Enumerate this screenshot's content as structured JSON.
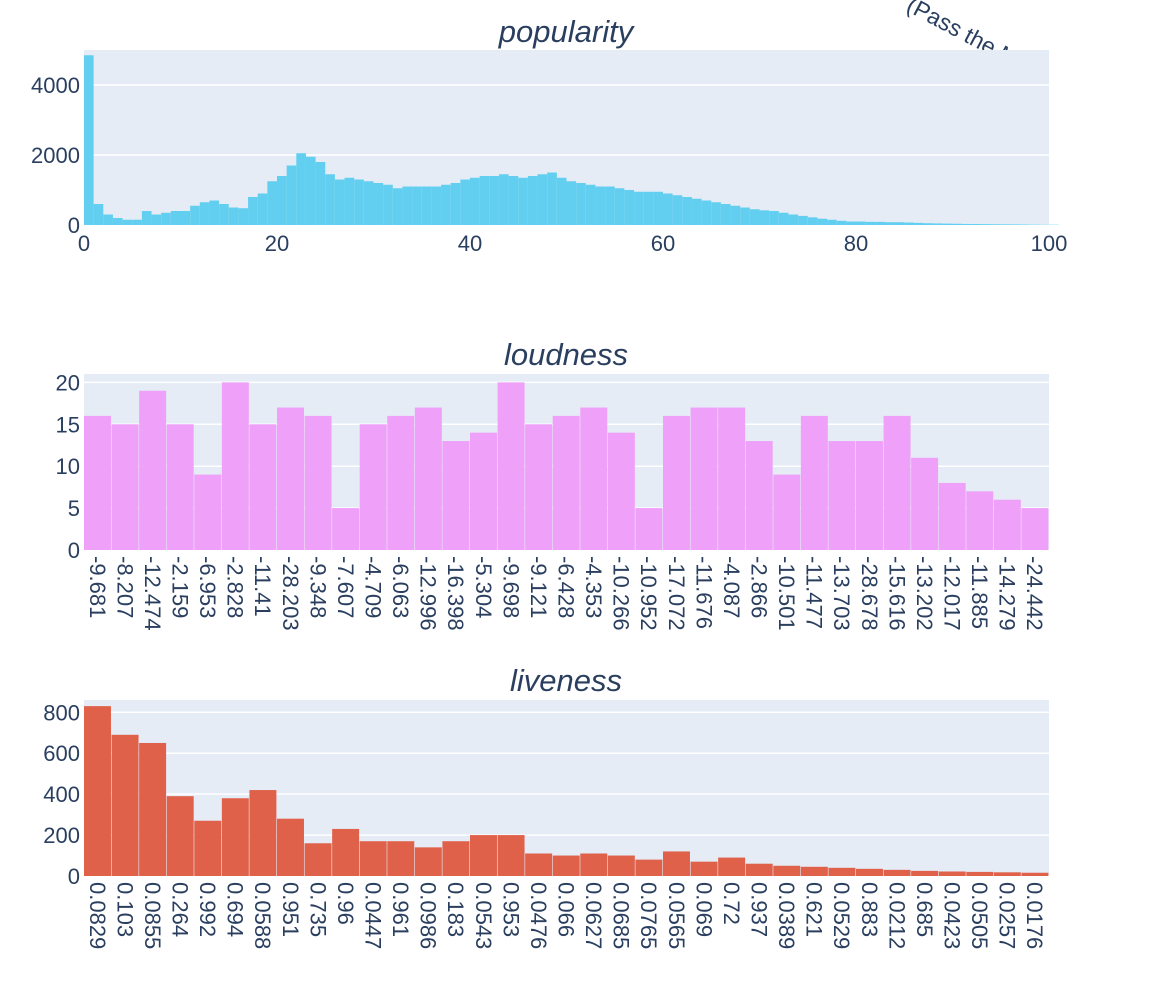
{
  "top_label": "(Pass the MIC)",
  "colors": {
    "popularity": "#63cff0",
    "loudness": "#efa0f9",
    "liveness": "#e0614a",
    "plot_bg": "#e5ecf6",
    "text": "#2a3f5f"
  },
  "chart_data": [
    {
      "type": "bar",
      "title": "popularity",
      "xlabel": "",
      "ylabel": "",
      "xlim": [
        0,
        100
      ],
      "ylim": [
        0,
        5000
      ],
      "xticks": [
        "0",
        "20",
        "40",
        "60",
        "80",
        "100"
      ],
      "yticks": [
        "0",
        "2000",
        "4000"
      ],
      "bin_width": 1,
      "values": [
        4850,
        600,
        300,
        200,
        150,
        150,
        400,
        300,
        350,
        400,
        400,
        550,
        650,
        700,
        600,
        500,
        480,
        800,
        900,
        1250,
        1400,
        1700,
        2050,
        1950,
        1800,
        1450,
        1300,
        1350,
        1300,
        1250,
        1200,
        1150,
        1050,
        1100,
        1100,
        1100,
        1100,
        1150,
        1200,
        1300,
        1350,
        1400,
        1400,
        1450,
        1400,
        1350,
        1400,
        1450,
        1500,
        1350,
        1250,
        1200,
        1150,
        1100,
        1100,
        1050,
        1000,
        950,
        950,
        950,
        900,
        850,
        800,
        750,
        700,
        650,
        600,
        550,
        500,
        450,
        420,
        400,
        350,
        300,
        260,
        220,
        180,
        150,
        120,
        100,
        100,
        90,
        90,
        80,
        80,
        70,
        60,
        50,
        45,
        40,
        35,
        30,
        28,
        25,
        22,
        20,
        18,
        15,
        12,
        10,
        8
      ]
    },
    {
      "type": "bar",
      "title": "loudness",
      "xlabel": "",
      "ylabel": "",
      "ylim": [
        0,
        21
      ],
      "yticks": [
        "0",
        "5",
        "10",
        "15",
        "20"
      ],
      "categories": [
        "-9.681",
        "-8.207",
        "-12.474",
        "-2.159",
        "-6.953",
        "-2.828",
        "-11.41",
        "-28.203",
        "-9.348",
        "-7.607",
        "-4.709",
        "-6.063",
        "-12.996",
        "-16.398",
        "-5.304",
        "-9.698",
        "-9.121",
        "-6.428",
        "-4.353",
        "-10.266",
        "-10.952",
        "-17.072",
        "-11.676",
        "-4.087",
        "-2.866",
        "-10.501",
        "-11.477",
        "-13.703",
        "-28.678",
        "-15.616",
        "-13.202",
        "-12.017",
        "-11.885",
        "-14.279",
        "-24.442"
      ],
      "values": [
        16,
        15,
        19,
        15,
        9,
        20,
        15,
        17,
        16,
        5,
        15,
        16,
        17,
        13,
        14,
        20,
        15,
        16,
        17,
        14,
        5,
        16,
        17,
        17,
        13,
        9,
        16,
        13,
        13,
        16,
        11,
        8,
        7,
        6,
        5
      ]
    },
    {
      "type": "bar",
      "title": "liveness",
      "xlabel": "",
      "ylabel": "",
      "ylim": [
        0,
        860
      ],
      "yticks": [
        "0",
        "200",
        "400",
        "600",
        "800"
      ],
      "categories": [
        "0.0829",
        "0.103",
        "0.0855",
        "0.264",
        "0.992",
        "0.694",
        "0.0588",
        "0.951",
        "0.735",
        "0.96",
        "0.0447",
        "0.961",
        "0.0986",
        "0.183",
        "0.0543",
        "0.953",
        "0.0476",
        "0.066",
        "0.0627",
        "0.0685",
        "0.0765",
        "0.0565",
        "0.069",
        "0.72",
        "0.937",
        "0.0389",
        "0.621",
        "0.0529",
        "0.883",
        "0.0212",
        "0.685",
        "0.0423",
        "0.0505",
        "0.0257",
        "0.0176"
      ],
      "values": [
        830,
        690,
        650,
        390,
        270,
        380,
        420,
        280,
        160,
        230,
        170,
        170,
        140,
        170,
        200,
        200,
        110,
        100,
        110,
        100,
        80,
        120,
        70,
        90,
        60,
        50,
        45,
        40,
        35,
        30,
        25,
        22,
        20,
        18,
        16
      ]
    }
  ]
}
